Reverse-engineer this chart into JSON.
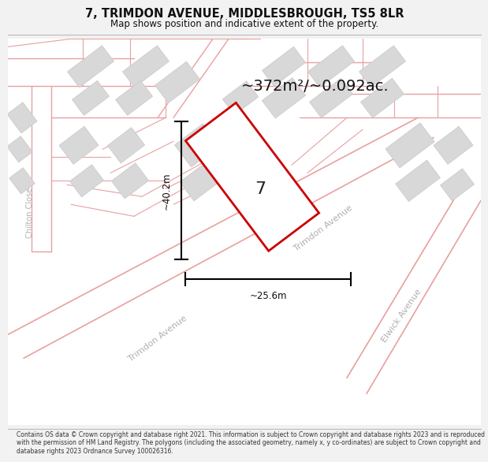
{
  "title_line1": "7, TRIMDON AVENUE, MIDDLESBROUGH, TS5 8LR",
  "title_line2": "Map shows position and indicative extent of the property.",
  "area_text": "~372m²/~0.092ac.",
  "property_number": "7",
  "dim_height": "~40.2m",
  "dim_width": "~25.6m",
  "footer_text": "Contains OS data © Crown copyright and database right 2021. This information is subject to Crown copyright and database rights 2023 and is reproduced with the permission of HM Land Registry. The polygons (including the associated geometry, namely x, y co-ordinates) are subject to Crown copyright and database rights 2023 Ordnance Survey 100026316.",
  "bg_color": "#f2f2f2",
  "map_bg_color": "#ffffff",
  "road_color": "#e8a0a0",
  "building_color": "#d8d8d8",
  "building_edge_color": "#cccccc",
  "property_outline_color": "#cc0000",
  "dim_color": "#111111",
  "road_label_color": "#b0b0b0",
  "title_color": "#111111",
  "footer_color": "#333333"
}
